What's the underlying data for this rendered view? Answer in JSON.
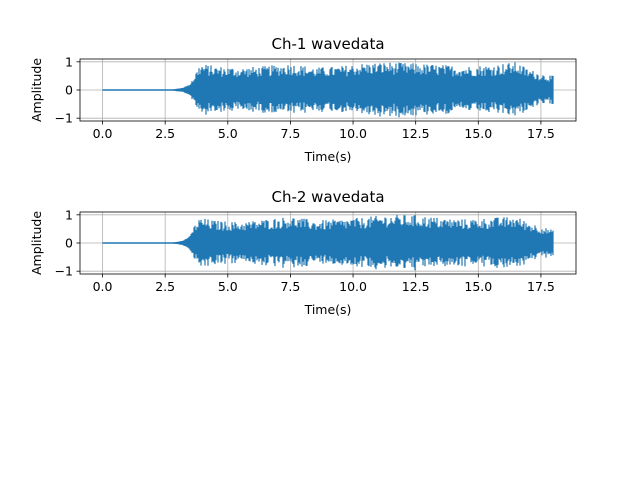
{
  "chart_data": [
    {
      "type": "line",
      "title": "Ch-1 wavedata",
      "xlabel": "Time(s)",
      "ylabel": "Amplitude",
      "xlim": [
        -0.9,
        18.9
      ],
      "ylim": [
        -1.1,
        1.1
      ],
      "xticks": [
        0.0,
        2.5,
        5.0,
        7.5,
        10.0,
        12.5,
        15.0,
        17.5
      ],
      "xtick_labels": [
        "0.0",
        "2.5",
        "5.0",
        "7.5",
        "10.0",
        "12.5",
        "15.0",
        "17.5"
      ],
      "yticks": [
        -1,
        0,
        1
      ],
      "ytick_labels": [
        "−1",
        "0",
        "1"
      ],
      "grid": true,
      "color": "#1f77b4",
      "series": [
        {
          "x_range": [
            0.0,
            18.0
          ],
          "envelope_time": [
            0.0,
            2.8,
            3.2,
            3.5,
            3.7,
            3.9,
            4.5,
            5.5,
            6.5,
            7.5,
            8.5,
            9.5,
            10.3,
            11.3,
            12.5,
            13.5,
            14.5,
            15.5,
            16.5,
            17.0,
            17.5,
            18.0
          ],
          "envelope_amplitude": [
            0.0,
            0.02,
            0.08,
            0.2,
            0.6,
            0.95,
            0.85,
            0.8,
            0.85,
            0.95,
            0.8,
            0.85,
            0.95,
            1.0,
            0.95,
            0.9,
            0.85,
            0.9,
            1.0,
            0.75,
            0.6,
            0.5
          ]
        }
      ]
    },
    {
      "type": "line",
      "title": "Ch-2 wavedata",
      "xlabel": "Time(s)",
      "ylabel": "Amplitude",
      "xlim": [
        -0.9,
        18.9
      ],
      "ylim": [
        -1.1,
        1.1
      ],
      "xticks": [
        0.0,
        2.5,
        5.0,
        7.5,
        10.0,
        12.5,
        15.0,
        17.5
      ],
      "xtick_labels": [
        "0.0",
        "2.5",
        "5.0",
        "7.5",
        "10.0",
        "12.5",
        "15.0",
        "17.5"
      ],
      "yticks": [
        -1,
        0,
        1
      ],
      "ytick_labels": [
        "−1",
        "0",
        "1"
      ],
      "grid": true,
      "color": "#1f77b4",
      "series": [
        {
          "x_range": [
            0.0,
            18.0
          ],
          "envelope_time": [
            0.0,
            2.8,
            3.2,
            3.5,
            3.7,
            3.9,
            4.5,
            5.5,
            6.5,
            7.5,
            8.5,
            9.5,
            10.3,
            11.3,
            12.5,
            13.5,
            14.5,
            15.5,
            16.5,
            17.0,
            17.5,
            18.0
          ],
          "envelope_amplitude": [
            0.0,
            0.02,
            0.08,
            0.25,
            0.7,
            0.9,
            0.8,
            0.75,
            0.85,
            0.95,
            0.8,
            0.85,
            0.9,
            1.0,
            1.0,
            0.9,
            0.85,
            0.9,
            0.95,
            0.75,
            0.6,
            0.45
          ]
        }
      ]
    }
  ]
}
